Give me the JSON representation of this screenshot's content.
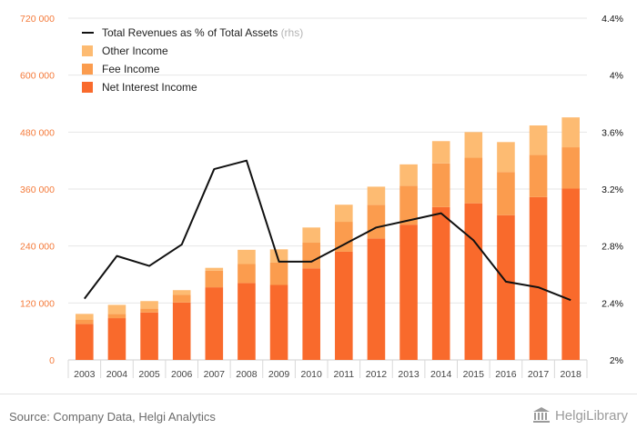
{
  "chart_data": {
    "type": "bar",
    "stacked": true,
    "categories": [
      "2003",
      "2004",
      "2005",
      "2006",
      "2007",
      "2008",
      "2009",
      "2010",
      "2011",
      "2012",
      "2013",
      "2014",
      "2015",
      "2016",
      "2017",
      "2018"
    ],
    "series": [
      {
        "name": "Net Interest Income",
        "color": "#f96a2c",
        "values": [
          76000,
          88000,
          100000,
          121000,
          153000,
          162000,
          158000,
          193000,
          228000,
          256000,
          285000,
          322000,
          330000,
          305000,
          343000,
          361000
        ]
      },
      {
        "name": "Fee Income",
        "color": "#fb9c4e",
        "values": [
          9000,
          9000,
          8000,
          16000,
          35000,
          40000,
          47000,
          54000,
          63000,
          71000,
          82000,
          92000,
          96000,
          91000,
          89000,
          87000
        ]
      },
      {
        "name": "Other Income",
        "color": "#fdbb72",
        "values": [
          12000,
          19000,
          16000,
          10000,
          6000,
          30000,
          28000,
          32000,
          36000,
          38000,
          45000,
          47000,
          54000,
          63000,
          62000,
          63000
        ]
      }
    ],
    "line_series": {
      "name": "Total Revenues as % of Total Assets",
      "name_suffix": "(rhs)",
      "color": "#111111",
      "values": [
        2.43,
        2.73,
        2.66,
        2.81,
        3.34,
        3.4,
        2.69,
        2.69,
        2.81,
        2.93,
        2.98,
        3.03,
        2.84,
        2.55,
        2.51,
        2.42
      ]
    },
    "y_left": {
      "min": 0,
      "max": 720000,
      "ticks": [
        {
          "v": 0,
          "label": "0"
        },
        {
          "v": 120000,
          "label": "120 000"
        },
        {
          "v": 240000,
          "label": "240 000"
        },
        {
          "v": 360000,
          "label": "360 000"
        },
        {
          "v": 480000,
          "label": "480 000"
        },
        {
          "v": 600000,
          "label": "600 000"
        },
        {
          "v": 720000,
          "label": "720 000"
        }
      ]
    },
    "y_right": {
      "min": 2.0,
      "max": 4.4,
      "ticks": [
        {
          "v": 2.0,
          "label": "2%"
        },
        {
          "v": 2.4,
          "label": "2.4%"
        },
        {
          "v": 2.8,
          "label": "2.8%"
        },
        {
          "v": 3.2,
          "label": "3.2%"
        },
        {
          "v": 3.6,
          "label": "3.6%"
        },
        {
          "v": 4.0,
          "label": "4%"
        },
        {
          "v": 4.4,
          "label": "4.4%"
        }
      ]
    },
    "legend_position": "top-left",
    "grid": true,
    "colors": {
      "left_axis_text": "#f47a3a",
      "right_axis_text": "#111111",
      "gridline": "#e6e6e6",
      "legend_suffix": "#b4b4b4"
    }
  },
  "footer": {
    "source": "Source: Company Data, Helgi Analytics",
    "logo_text": "HelgiLibrary"
  }
}
